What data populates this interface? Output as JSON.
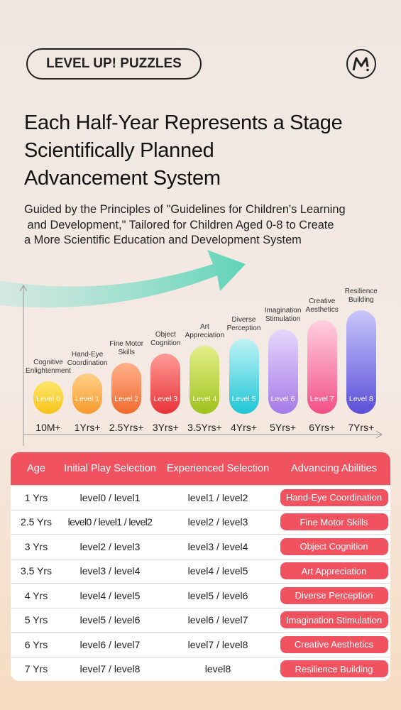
{
  "header": {
    "badge": "LEVEL UP! PUZZLES"
  },
  "title": [
    "Each Half-Year Represents a Stage",
    "Scientifically Planned",
    "Advancement System"
  ],
  "subtitle": [
    "Guided by the Principles of \"Guidelines for Children's Learning",
    " and Development,\" Tailored for Children Aged 0-8 to Create",
    "a More Scientific Education and Development System"
  ],
  "stages": [
    {
      "level": "Level 0",
      "ability": "Cognitive Enlightenment",
      "age": "10M+"
    },
    {
      "level": "Level 1",
      "ability": "Hand-Eye Coordination",
      "age": "1Yrs+"
    },
    {
      "level": "Level 2",
      "ability": "Fine Motor Skills",
      "age": "2.5Yrs+"
    },
    {
      "level": "Level 3",
      "ability": "Object Cognition",
      "age": "3Yrs+"
    },
    {
      "level": "Level 4",
      "ability": "Art Appreciation",
      "age": "3.5Yrs+"
    },
    {
      "level": "Level 5",
      "ability": "Diverse Perception",
      "age": "4Yrs+"
    },
    {
      "level": "Level 6",
      "ability": "Imagination Stimulation",
      "age": "5Yrs+"
    },
    {
      "level": "Level 7",
      "ability": "Creative Aesthetics",
      "age": "6Yrs+"
    },
    {
      "level": "Level 8",
      "ability": "Resilience Building",
      "age": "7Yrs+"
    }
  ],
  "table": {
    "columns": [
      "Age",
      "Initial Play Selection",
      "Experienced Selection",
      "Advancing Abilities"
    ],
    "rows": [
      [
        "1 Yrs",
        "level0 / level1",
        "level1 / level2",
        "Hand-Eye Coordination"
      ],
      [
        "2.5 Yrs",
        "level0 / level1 / level2",
        "level2 / level3",
        "Fine Motor Skills"
      ],
      [
        "3 Yrs",
        "level2 / level3",
        "level3 / level4",
        "Object Cognition"
      ],
      [
        "3.5 Yrs",
        "level3 / level4",
        "level4 / level5",
        "Art Appreciation"
      ],
      [
        "4 Yrs",
        "level4 / level5",
        "level5 / level6",
        "Diverse Perception"
      ],
      [
        "5 Yrs",
        "level5 / level6",
        "level6 / level7",
        "Imagination Stimulation"
      ],
      [
        "6 Yrs",
        "level6 / level7",
        "level7 / level8",
        "Creative Aesthetics"
      ],
      [
        "7 Yrs",
        "level7 / level8",
        "level8",
        "Resilience Building"
      ]
    ]
  }
}
